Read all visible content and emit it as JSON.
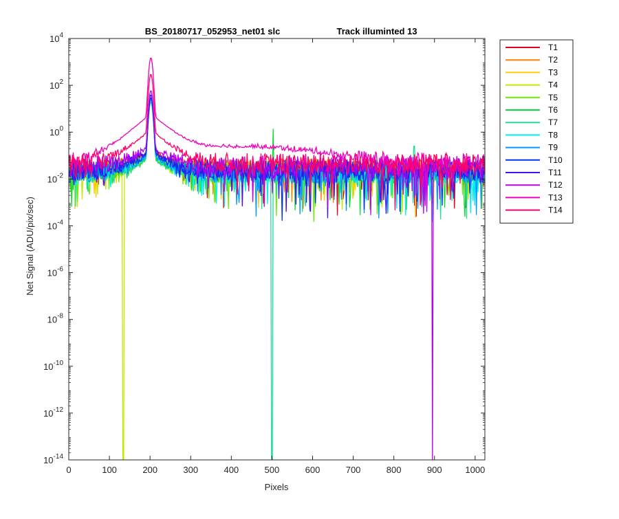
{
  "chart_data": {
    "type": "line",
    "title_left": "BS_20180717_052953_net01   slc",
    "title_right": "Track illuminted 13",
    "xlabel": "Pixels",
    "ylabel": "Net Signal (ADU/pix/sec)",
    "xlim": [
      0,
      1024
    ],
    "ylim": [
      1e-14,
      10000
    ],
    "yscale": "log",
    "x_ticks": [
      0,
      100,
      200,
      300,
      400,
      500,
      600,
      700,
      800,
      900,
      1000
    ],
    "y_ticks": [
      {
        "exp": 4,
        "label": "4"
      },
      {
        "exp": 2,
        "label": "2"
      },
      {
        "exp": 0,
        "label": "0"
      },
      {
        "exp": -2,
        "label": "-2"
      },
      {
        "exp": -4,
        "label": "-4"
      },
      {
        "exp": -6,
        "label": "-6"
      },
      {
        "exp": -8,
        "label": "-8"
      },
      {
        "exp": -10,
        "label": "-10"
      },
      {
        "exp": -12,
        "label": "-12"
      },
      {
        "exp": -14,
        "label": "-14"
      }
    ],
    "y_tick_base": "10",
    "grid": false,
    "legend_position": "outside-right",
    "series": [
      {
        "name": "T1",
        "color": "#e6001a",
        "baseline": 0.03,
        "peak": 30,
        "dip_x": null
      },
      {
        "name": "T2",
        "color": "#ff7f00",
        "baseline": 0.03,
        "peak": 30,
        "dip_x": null
      },
      {
        "name": "T3",
        "color": "#ffcc00",
        "baseline": 0.025,
        "peak": 25,
        "dip_x": null
      },
      {
        "name": "T4",
        "color": "#c8e600",
        "baseline": 0.025,
        "peak": 20,
        "dip_x": 134
      },
      {
        "name": "T5",
        "color": "#66ee00",
        "baseline": 0.02,
        "peak": 20,
        "dip_x": null
      },
      {
        "name": "T6",
        "color": "#11dd33",
        "baseline": 0.02,
        "peak": 20,
        "dip_x": null,
        "spike_x": 503,
        "spike_y": 1.4
      },
      {
        "name": "T7",
        "color": "#22dd99",
        "baseline": 0.02,
        "peak": 20,
        "dip_x": 500,
        "spike_x": 850,
        "spike_y": 0.25
      },
      {
        "name": "T8",
        "color": "#00eeee",
        "baseline": 0.02,
        "peak": 25,
        "dip_x": null
      },
      {
        "name": "T9",
        "color": "#0099ff",
        "baseline": 0.02,
        "peak": 25,
        "dip_x": null
      },
      {
        "name": "T10",
        "color": "#0033ee",
        "baseline": 0.025,
        "peak": 30,
        "dip_x": null
      },
      {
        "name": "T11",
        "color": "#4411ee",
        "baseline": 0.03,
        "peak": 40,
        "dip_x": null
      },
      {
        "name": "T12",
        "color": "#bb00ee",
        "baseline": 0.04,
        "peak": 60,
        "dip_x": 895
      },
      {
        "name": "T13",
        "color": "#ee00bb",
        "baseline": 0.05,
        "peak": 1500,
        "dip_x": null,
        "hump": 0.2
      },
      {
        "name": "T14",
        "color": "#ff0066",
        "baseline": 0.05,
        "peak": 300,
        "dip_x": null
      }
    ]
  }
}
